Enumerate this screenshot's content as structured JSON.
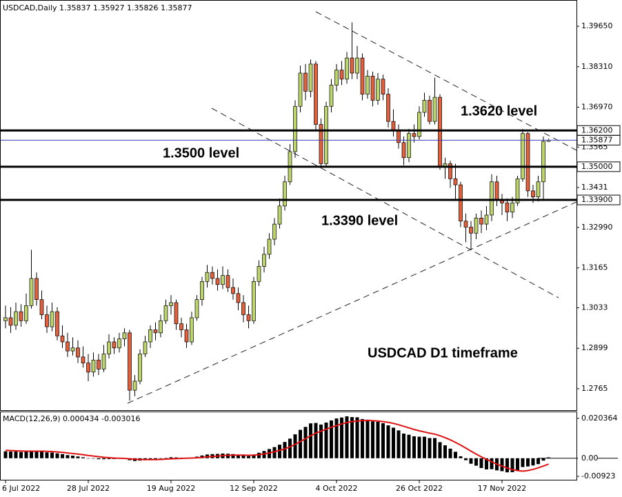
{
  "chart_data": [
    {
      "type": "candlestick",
      "title": "USDCAD,Daily  1.35837 1.35927 1.35826 1.35877",
      "categories": [
        "6 Jul 2022",
        null,
        null,
        null,
        null,
        null,
        null,
        null,
        null,
        null,
        null,
        null,
        null,
        null,
        null,
        null,
        "28 Jul 2022",
        null,
        null,
        null,
        null,
        null,
        null,
        null,
        null,
        null,
        null,
        null,
        null,
        null,
        null,
        null,
        "19 Aug 2022",
        null,
        null,
        null,
        null,
        null,
        null,
        null,
        null,
        null,
        null,
        null,
        null,
        null,
        null,
        null,
        "12 Sep 2022",
        null,
        null,
        null,
        null,
        null,
        null,
        null,
        null,
        null,
        null,
        null,
        null,
        null,
        null,
        null,
        "4 Oct 2022",
        null,
        null,
        null,
        null,
        null,
        null,
        null,
        null,
        null,
        null,
        null,
        null,
        null,
        null,
        null,
        "26 Oct 2022",
        null,
        null,
        null,
        null,
        null,
        null,
        null,
        null,
        null,
        null,
        null,
        null,
        null,
        null,
        null,
        "17 Nov 2022",
        null,
        null,
        null,
        null,
        null,
        null,
        null,
        null,
        null
      ],
      "open": [
        1.299,
        1.3,
        1.2975,
        1.302,
        1.299,
        1.304,
        1.313,
        1.306,
        1.301,
        1.297,
        1.302,
        1.294,
        1.292,
        1.289,
        1.29,
        1.287,
        1.285,
        1.282,
        1.286,
        1.283,
        1.288,
        1.292,
        1.29,
        1.293,
        1.295,
        1.276,
        1.279,
        1.288,
        1.292,
        1.296,
        1.295,
        1.299,
        1.304,
        1.305,
        1.298,
        1.296,
        1.292,
        1.3,
        1.306,
        1.312,
        1.315,
        1.313,
        1.311,
        1.314,
        1.31,
        1.308,
        1.305,
        1.301,
        1.299,
        1.312,
        1.317,
        1.321,
        1.326,
        1.331,
        1.337,
        1.345,
        1.355,
        1.37,
        1.381,
        1.375,
        1.384,
        1.364,
        1.351,
        1.37,
        1.377,
        1.382,
        1.379,
        1.386,
        1.381,
        1.386,
        1.374,
        1.38,
        1.372,
        1.379,
        1.374,
        1.365,
        1.362,
        1.358,
        1.353,
        1.361,
        1.36,
        1.368,
        1.372,
        1.365,
        1.373,
        1.35,
        1.351,
        1.346,
        1.344,
        1.332,
        1.33,
        1.328,
        1.333,
        1.331,
        1.334,
        1.345,
        1.339,
        1.338,
        1.335,
        1.338,
        1.346,
        1.361,
        1.342,
        1.34,
        1.345,
        1.35837
      ],
      "high": [
        1.304,
        1.3035,
        1.305,
        1.3045,
        1.308,
        1.3225,
        1.315,
        1.309,
        1.304,
        1.305,
        1.3035,
        1.2975,
        1.295,
        1.2935,
        1.2925,
        1.2905,
        1.288,
        1.2885,
        1.288,
        1.291,
        1.2945,
        1.2935,
        1.295,
        1.2965,
        1.296,
        1.281,
        1.2895,
        1.294,
        1.2975,
        1.2985,
        1.301,
        1.306,
        1.3075,
        1.306,
        1.3,
        1.298,
        1.302,
        1.3075,
        1.3135,
        1.3175,
        1.317,
        1.316,
        1.317,
        1.316,
        1.313,
        1.31,
        1.3075,
        1.304,
        1.3135,
        1.319,
        1.3235,
        1.328,
        1.333,
        1.3395,
        1.347,
        1.3575,
        1.372,
        1.3835,
        1.384,
        1.3855,
        1.385,
        1.366,
        1.3715,
        1.379,
        1.384,
        1.385,
        1.388,
        1.3978,
        1.39,
        1.3875,
        1.382,
        1.3815,
        1.381,
        1.3805,
        1.376,
        1.369,
        1.364,
        1.36,
        1.3625,
        1.364,
        1.37,
        1.3745,
        1.3735,
        1.3795,
        1.374,
        1.353,
        1.352,
        1.351,
        1.345,
        1.3345,
        1.332,
        1.3345,
        1.3355,
        1.337,
        1.3475,
        1.347,
        1.341,
        1.3395,
        1.34,
        1.347,
        1.3625,
        1.3615,
        1.344,
        1.347,
        1.36,
        1.35927
      ],
      "low": [
        1.2965,
        1.295,
        1.296,
        1.297,
        1.298,
        1.303,
        1.304,
        1.2995,
        1.295,
        1.2955,
        1.2925,
        1.29,
        1.287,
        1.2875,
        1.285,
        1.2835,
        1.279,
        1.2805,
        1.281,
        1.282,
        1.2865,
        1.288,
        1.2885,
        1.2905,
        1.2725,
        1.274,
        1.278,
        1.287,
        1.29,
        1.2925,
        1.2935,
        1.298,
        1.301,
        1.296,
        1.2935,
        1.29,
        1.291,
        1.299,
        1.304,
        1.31,
        1.311,
        1.309,
        1.3095,
        1.3085,
        1.306,
        1.3025,
        1.2985,
        1.2965,
        1.298,
        1.3105,
        1.315,
        1.3195,
        1.324,
        1.3295,
        1.3355,
        1.344,
        1.353,
        1.368,
        1.372,
        1.373,
        1.362,
        1.3495,
        1.35,
        1.368,
        1.375,
        1.377,
        1.3775,
        1.379,
        1.379,
        1.372,
        1.3725,
        1.37,
        1.3705,
        1.372,
        1.363,
        1.36,
        1.356,
        1.3505,
        1.3515,
        1.358,
        1.359,
        1.3665,
        1.364,
        1.364,
        1.349,
        1.346,
        1.343,
        1.339,
        1.33,
        1.325,
        1.3225,
        1.326,
        1.328,
        1.329,
        1.332,
        1.337,
        1.334,
        1.332,
        1.333,
        1.337,
        1.345,
        1.34,
        1.338,
        1.3385,
        1.339,
        1.35826
      ],
      "close": [
        1.3,
        1.2975,
        1.302,
        1.299,
        1.304,
        1.313,
        1.306,
        1.301,
        1.297,
        1.302,
        1.294,
        1.292,
        1.289,
        1.29,
        1.287,
        1.285,
        1.282,
        1.286,
        1.283,
        1.288,
        1.292,
        1.29,
        1.293,
        1.295,
        1.276,
        1.279,
        1.288,
        1.292,
        1.296,
        1.295,
        1.299,
        1.304,
        1.305,
        1.298,
        1.296,
        1.292,
        1.3,
        1.306,
        1.312,
        1.315,
        1.313,
        1.311,
        1.314,
        1.31,
        1.308,
        1.305,
        1.301,
        1.299,
        1.312,
        1.317,
        1.321,
        1.326,
        1.331,
        1.337,
        1.345,
        1.355,
        1.37,
        1.381,
        1.375,
        1.384,
        1.364,
        1.351,
        1.37,
        1.377,
        1.382,
        1.379,
        1.386,
        1.381,
        1.386,
        1.374,
        1.38,
        1.372,
        1.379,
        1.374,
        1.365,
        1.362,
        1.358,
        1.353,
        1.361,
        1.36,
        1.368,
        1.372,
        1.365,
        1.373,
        1.35,
        1.351,
        1.346,
        1.344,
        1.332,
        1.33,
        1.328,
        1.333,
        1.331,
        1.334,
        1.345,
        1.339,
        1.338,
        1.335,
        1.338,
        1.346,
        1.361,
        1.342,
        1.34,
        1.345,
        1.3584,
        1.35877
      ],
      "up_color": "#bcd46c",
      "down_color": "#e2603c",
      "ylim": [
        1.2694,
        1.4052
      ],
      "yticks": [
        {
          "value": 1.3965,
          "label": "1.39650"
        },
        {
          "value": 1.3831,
          "label": "1.38310"
        },
        {
          "value": 1.3697,
          "label": "1.36970"
        },
        1.3565,
        1.3431,
        {
          "value": 1.3299,
          "label": "1.32990"
        },
        1.3165,
        1.3033,
        1.2899,
        1.2765
      ],
      "levels": [
        {
          "value": 1.362,
          "label": "1.36200",
          "color": "#000000"
        },
        {
          "value": 1.35877,
          "label": "1.35877",
          "color": "#3c3cb4"
        },
        {
          "value": 1.35,
          "label": "1.35000",
          "color": "#000000"
        },
        {
          "value": 1.339,
          "label": "1.33900",
          "color": "#000000"
        }
      ],
      "annotations": [
        "1.3620 level",
        "1.3500 level",
        "1.3390 level",
        "USDCAD D1 timeframe"
      ]
    },
    {
      "type": "macd",
      "title": "MACD(12,26,9) 0.000434 -0.003016",
      "histogram": {
        "color": "#000000",
        "values": [
          0.0035,
          0.0034,
          0.0034,
          0.0032,
          0.0033,
          0.0036,
          0.0036,
          0.0034,
          0.003,
          0.0029,
          0.0025,
          0.0021,
          0.0016,
          0.0013,
          0.0009,
          0.0005,
          0.0,
          -0.0002,
          -0.0005,
          -0.0005,
          -0.0004,
          -0.0004,
          -0.0003,
          -0.0002,
          -0.001,
          -0.0014,
          -0.0012,
          -0.001,
          -0.0007,
          -0.0005,
          -0.0002,
          0.0002,
          0.0005,
          0.0004,
          0.0003,
          0.0001,
          0.0004,
          0.0008,
          0.0014,
          0.0019,
          0.0021,
          0.0022,
          0.0024,
          0.0023,
          0.0021,
          0.0018,
          0.0014,
          0.0011,
          0.0019,
          0.0028,
          0.0037,
          0.0047,
          0.0057,
          0.0069,
          0.0083,
          0.01,
          0.0122,
          0.0145,
          0.016,
          0.0178,
          0.018,
          0.0172,
          0.0182,
          0.0193,
          0.0203,
          0.0208,
          0.0214,
          0.021,
          0.0209,
          0.02,
          0.0197,
          0.0188,
          0.0186,
          0.0179,
          0.0168,
          0.0156,
          0.0142,
          0.0126,
          0.012,
          0.0112,
          0.011,
          0.011,
          0.0103,
          0.0103,
          0.0082,
          0.0066,
          0.0049,
          0.0033,
          0.001,
          -0.001,
          -0.0028,
          -0.0038,
          -0.005,
          -0.0057,
          -0.0056,
          -0.0062,
          -0.0066,
          -0.0072,
          -0.0071,
          -0.0064,
          -0.0045,
          -0.0042,
          -0.0037,
          -0.003,
          -0.0012,
          0.000434
        ]
      },
      "signal": {
        "color": "#e01010",
        "values": [
          0.004,
          0.0039,
          0.0038,
          0.0037,
          0.0036,
          0.0036,
          0.0036,
          0.0036,
          0.0035,
          0.0034,
          0.0032,
          0.003,
          0.0027,
          0.0024,
          0.0021,
          0.0018,
          0.0014,
          0.0011,
          0.0008,
          0.0005,
          0.0003,
          0.0001,
          0.0,
          -0.0001,
          -0.0003,
          -0.0005,
          -0.0006,
          -0.0007,
          -0.0007,
          -0.0007,
          -0.0006,
          -0.0005,
          -0.0003,
          -0.0002,
          -0.0001,
          0.0,
          0.0001,
          0.0002,
          0.0004,
          0.0007,
          0.0009,
          0.0011,
          0.0013,
          0.0015,
          0.0016,
          0.0016,
          0.0016,
          0.0015,
          0.0016,
          0.0018,
          0.0022,
          0.0027,
          0.0033,
          0.004,
          0.0048,
          0.0058,
          0.0071,
          0.0085,
          0.01,
          0.0115,
          0.0128,
          0.0138,
          0.0148,
          0.0158,
          0.0167,
          0.0175,
          0.0182,
          0.0187,
          0.019,
          0.0192,
          0.0193,
          0.0192,
          0.019,
          0.0187,
          0.0183,
          0.0178,
          0.0171,
          0.0163,
          0.0155,
          0.0147,
          0.014,
          0.0134,
          0.0128,
          0.0123,
          0.0115,
          0.0105,
          0.0094,
          0.0081,
          0.0067,
          0.0052,
          0.0036,
          0.0021,
          0.0007,
          -0.0006,
          -0.0018,
          -0.003,
          -0.004,
          -0.005,
          -0.0058,
          -0.0063,
          -0.0066,
          -0.0063,
          -0.0057,
          -0.0049,
          -0.004,
          -0.003016
        ]
      },
      "ylim": [
        -0.011,
        0.0235
      ],
      "yticks": [
        0.020364,
        {
          "value": 0,
          "label": "0.00"
        },
        -0.00923
      ]
    }
  ]
}
